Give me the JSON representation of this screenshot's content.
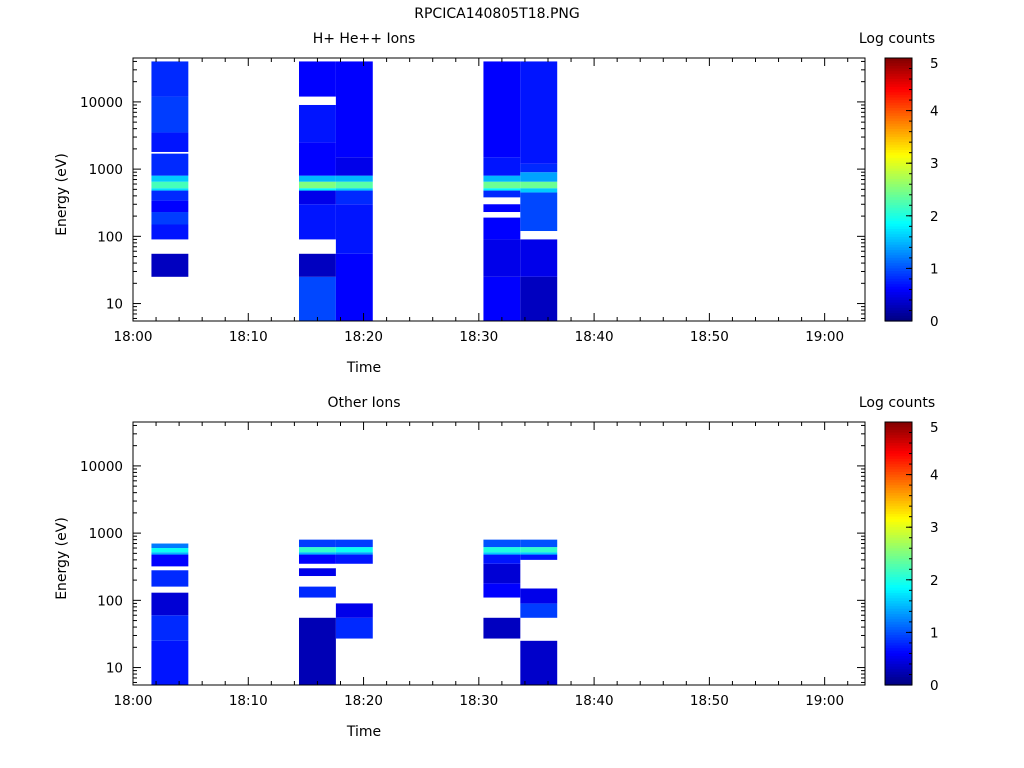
{
  "figure_title": "RPCICA140805T18.PNG",
  "colors": {
    "colormap": [
      "#000080",
      "#0000ff",
      "#00ffff",
      "#ffff00",
      "#ff0000",
      "#800000"
    ],
    "frame": "#000000"
  },
  "chart_data": [
    {
      "type": "heatmap",
      "title": "H+ He++ Ions",
      "xlabel": "Time",
      "ylabel": "Energy (eV)",
      "x_tick_labels": [
        "18:00",
        "18:10",
        "18:20",
        "18:30",
        "18:40",
        "18:50",
        "19:00"
      ],
      "y_tick_labels": [
        "10",
        "100",
        "1000",
        "10000"
      ],
      "y_scale": "log",
      "ylim": [
        5.5,
        45000
      ],
      "colorbar_label": "Log counts",
      "colorbar_tick_labels": [
        "0",
        "1",
        "2",
        "3",
        "4",
        "5"
      ],
      "colorbar_range": [
        0,
        5
      ],
      "columns": [
        {
          "t0": "18:01:36",
          "t1": "18:04:48",
          "cells": [
            [
              25,
              55,
              0.3
            ],
            [
              90,
              150,
              0.7
            ],
            [
              150,
              230,
              0.9
            ],
            [
              230,
              340,
              0.6
            ],
            [
              340,
              480,
              0.8
            ],
            [
              480,
              520,
              1.7
            ],
            [
              520,
              650,
              2.2
            ],
            [
              650,
              800,
              1.6
            ],
            [
              800,
              1700,
              0.8
            ],
            [
              1800,
              3500,
              0.7
            ],
            [
              3500,
              12000,
              0.9
            ],
            [
              12000,
              40000,
              0.8
            ]
          ]
        },
        {
          "t0": "18:14:24",
          "t1": "18:17:36",
          "cells": [
            [
              5.5,
              25,
              0.95
            ],
            [
              25,
              55,
              0.3
            ],
            [
              90,
              300,
              0.7
            ],
            [
              300,
              480,
              0.5
            ],
            [
              480,
              520,
              1.8
            ],
            [
              520,
              650,
              2.5
            ],
            [
              650,
              800,
              1.5
            ],
            [
              800,
              2500,
              0.6
            ],
            [
              2500,
              9000,
              0.7
            ],
            [
              12000,
              40000,
              0.6
            ]
          ]
        },
        {
          "t0": "18:17:36",
          "t1": "18:20:48",
          "cells": [
            [
              5.5,
              55,
              0.6
            ],
            [
              55,
              300,
              0.7
            ],
            [
              300,
              480,
              0.8
            ],
            [
              480,
              520,
              1.6
            ],
            [
              520,
              650,
              2.3
            ],
            [
              650,
              800,
              1.5
            ],
            [
              800,
              1500,
              0.5
            ],
            [
              1500,
              40000,
              0.6
            ]
          ]
        },
        {
          "t0": "18:30:24",
          "t1": "18:33:36",
          "cells": [
            [
              5.5,
              25,
              0.6
            ],
            [
              25,
              90,
              0.5
            ],
            [
              90,
              190,
              0.6
            ],
            [
              230,
              300,
              0.6
            ],
            [
              380,
              480,
              0.8
            ],
            [
              480,
              520,
              1.8
            ],
            [
              520,
              650,
              2.4
            ],
            [
              650,
              800,
              1.5
            ],
            [
              800,
              1500,
              0.7
            ],
            [
              1500,
              40000,
              0.6
            ]
          ]
        },
        {
          "t0": "18:33:36",
          "t1": "18:36:48",
          "cells": [
            [
              5.5,
              25,
              0.3
            ],
            [
              25,
              90,
              0.5
            ],
            [
              120,
              450,
              0.95
            ],
            [
              450,
              520,
              1.6
            ],
            [
              520,
              650,
              2.4
            ],
            [
              650,
              900,
              1.4
            ],
            [
              900,
              1200,
              0.8
            ],
            [
              1200,
              40000,
              0.7
            ]
          ]
        }
      ]
    },
    {
      "type": "heatmap",
      "title": "Other Ions",
      "xlabel": "Time",
      "ylabel": "Energy (eV)",
      "x_tick_labels": [
        "18:00",
        "18:10",
        "18:20",
        "18:30",
        "18:40",
        "18:50",
        "19:00"
      ],
      "y_tick_labels": [
        "10",
        "100",
        "1000",
        "10000"
      ],
      "y_scale": "log",
      "ylim": [
        5.5,
        45000
      ],
      "colorbar_label": "Log counts",
      "colorbar_tick_labels": [
        "0",
        "1",
        "2",
        "3",
        "4",
        "5"
      ],
      "colorbar_range": [
        0,
        5
      ],
      "columns": [
        {
          "t0": "18:01:36",
          "t1": "18:04:48",
          "cells": [
            [
              5.5,
              25,
              0.7
            ],
            [
              25,
              60,
              0.8
            ],
            [
              60,
              130,
              0.4
            ],
            [
              160,
              280,
              0.8
            ],
            [
              320,
              480,
              0.6
            ],
            [
              480,
              520,
              1.5
            ],
            [
              520,
              600,
              1.9
            ],
            [
              600,
              700,
              1.2
            ]
          ]
        },
        {
          "t0": "18:14:24",
          "t1": "18:17:36",
          "cells": [
            [
              5.5,
              55,
              0.25
            ],
            [
              110,
              160,
              0.8
            ],
            [
              230,
              300,
              0.5
            ],
            [
              350,
              480,
              0.6
            ],
            [
              480,
              520,
              1.5
            ],
            [
              520,
              620,
              2.1
            ],
            [
              620,
              800,
              0.9
            ]
          ]
        },
        {
          "t0": "18:17:36",
          "t1": "18:20:48",
          "cells": [
            [
              27,
              55,
              0.8
            ],
            [
              55,
              90,
              0.5
            ],
            [
              350,
              480,
              0.7
            ],
            [
              480,
              520,
              1.4
            ],
            [
              520,
              620,
              1.9
            ],
            [
              620,
              800,
              0.9
            ]
          ]
        },
        {
          "t0": "18:30:24",
          "t1": "18:33:36",
          "cells": [
            [
              27,
              55,
              0.3
            ],
            [
              110,
              180,
              0.6
            ],
            [
              180,
              350,
              0.4
            ],
            [
              350,
              480,
              0.7
            ],
            [
              480,
              520,
              1.6
            ],
            [
              520,
              620,
              2.0
            ],
            [
              620,
              800,
              1.0
            ]
          ]
        },
        {
          "t0": "18:33:36",
          "t1": "18:36:48",
          "cells": [
            [
              5.5,
              25,
              0.35
            ],
            [
              55,
              90,
              0.9
            ],
            [
              90,
              150,
              0.5
            ],
            [
              400,
              480,
              0.7
            ],
            [
              480,
              520,
              1.6
            ],
            [
              520,
              620,
              2.1
            ],
            [
              620,
              800,
              1.0
            ]
          ]
        }
      ]
    }
  ]
}
